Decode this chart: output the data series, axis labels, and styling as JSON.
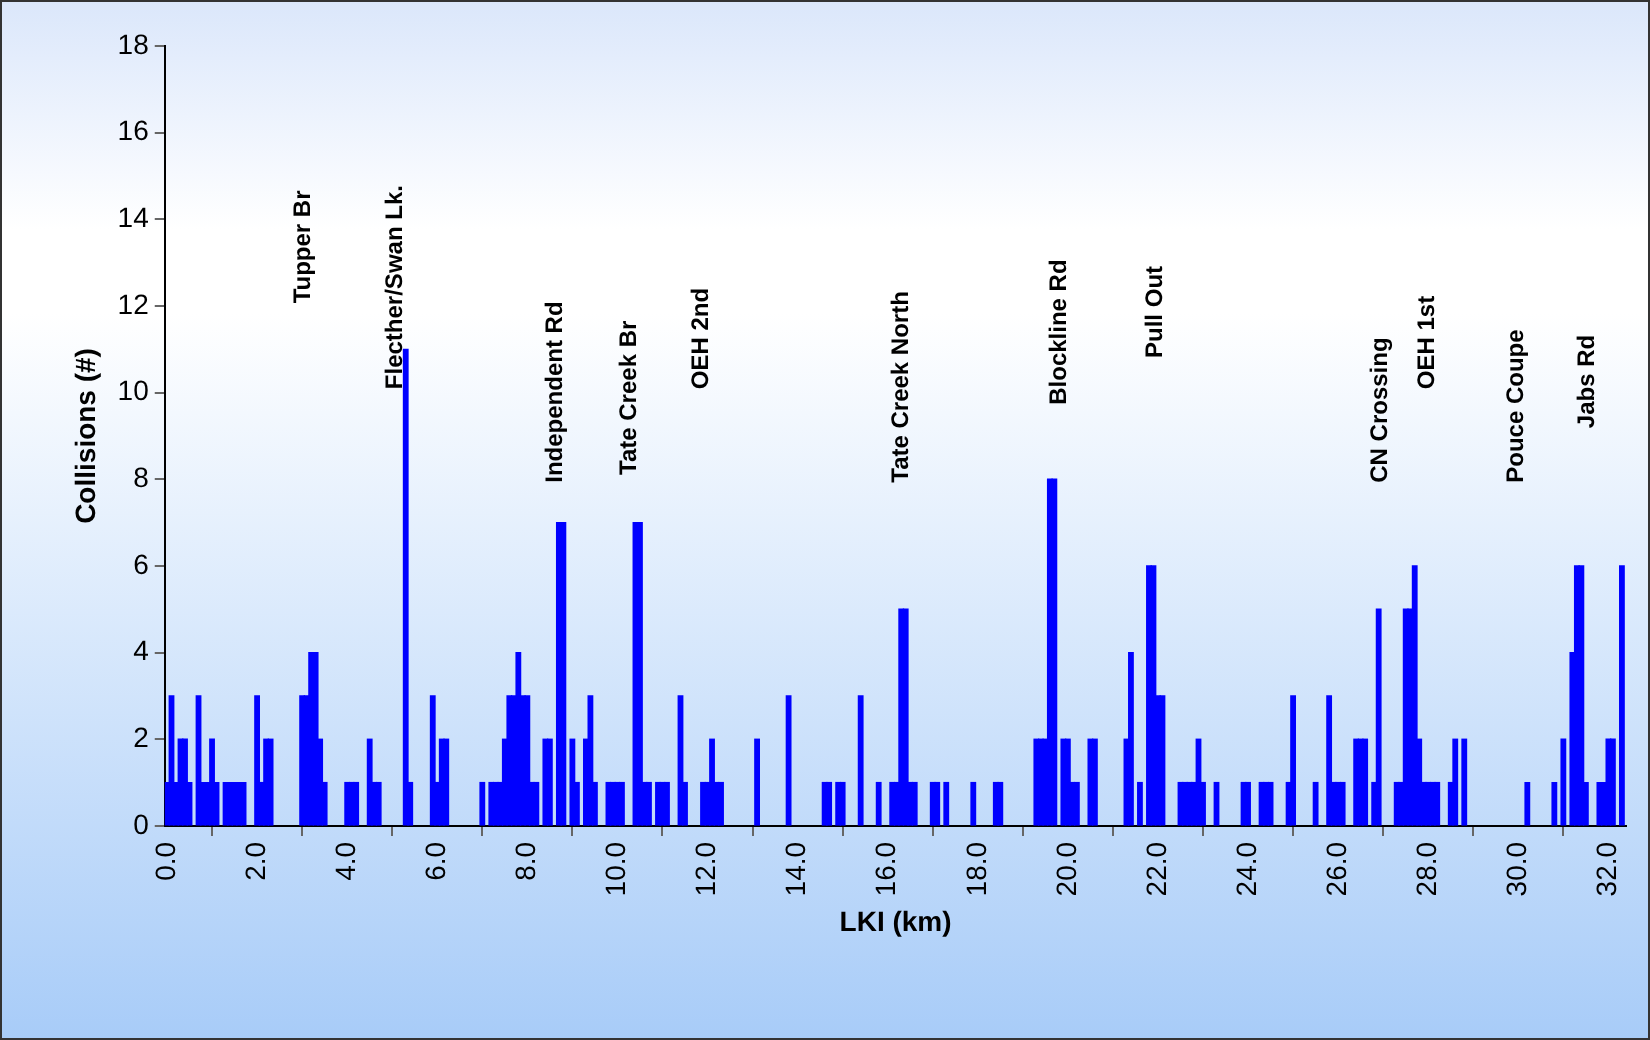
{
  "chart_data": {
    "type": "bar",
    "xlabel": "LKI (km)",
    "ylabel": "Collisions (#)",
    "color": "#0000ff",
    "grid": false,
    "legend": false,
    "x": [
      0.0,
      0.1,
      0.2,
      0.3,
      0.4,
      0.5,
      0.7,
      0.8,
      0.9,
      1.0,
      1.1,
      1.3,
      1.4,
      1.5,
      1.6,
      1.7,
      2.0,
      2.1,
      2.2,
      2.3,
      3.0,
      3.1,
      3.2,
      3.3,
      3.4,
      3.5,
      4.0,
      4.1,
      4.2,
      4.5,
      4.6,
      4.7,
      5.3,
      5.4,
      5.9,
      6.0,
      6.1,
      6.2,
      7.0,
      7.2,
      7.3,
      7.4,
      7.5,
      7.6,
      7.7,
      7.8,
      7.9,
      8.0,
      8.1,
      8.2,
      8.4,
      8.5,
      8.7,
      8.8,
      9.0,
      9.1,
      9.3,
      9.4,
      9.5,
      9.8,
      9.9,
      10.0,
      10.1,
      10.4,
      10.5,
      10.6,
      10.7,
      10.9,
      11.0,
      11.1,
      11.4,
      11.5,
      11.9,
      12.0,
      12.1,
      12.2,
      12.3,
      13.1,
      13.8,
      14.6,
      14.7,
      14.9,
      15.0,
      15.4,
      15.8,
      16.1,
      16.2,
      16.3,
      16.4,
      16.5,
      16.6,
      17.0,
      17.1,
      17.3,
      17.9,
      18.4,
      18.5,
      19.3,
      19.4,
      19.5,
      19.6,
      19.7,
      19.9,
      20.0,
      20.1,
      20.2,
      20.5,
      20.6,
      21.3,
      21.4,
      21.6,
      21.8,
      21.9,
      22.0,
      22.1,
      22.5,
      22.6,
      22.7,
      22.8,
      22.9,
      23.0,
      23.3,
      23.9,
      24.0,
      24.3,
      24.4,
      24.5,
      24.9,
      25.0,
      25.5,
      25.8,
      25.9,
      26.0,
      26.1,
      26.4,
      26.5,
      26.6,
      26.8,
      26.9,
      27.3,
      27.4,
      27.5,
      27.6,
      27.7,
      27.8,
      27.9,
      28.0,
      28.1,
      28.2,
      28.5,
      28.6,
      28.8,
      30.2,
      30.8,
      31.0,
      31.2,
      31.3,
      31.4,
      31.5,
      31.8,
      31.9,
      32.0,
      32.1,
      32.3
    ],
    "values": [
      1,
      3,
      1,
      2,
      2,
      1,
      3,
      1,
      1,
      2,
      1,
      1,
      1,
      1,
      1,
      1,
      3,
      1,
      2,
      2,
      3,
      3,
      4,
      4,
      2,
      1,
      1,
      1,
      1,
      2,
      1,
      1,
      11,
      1,
      3,
      1,
      2,
      2,
      1,
      1,
      1,
      1,
      2,
      3,
      3,
      4,
      3,
      3,
      1,
      1,
      2,
      2,
      7,
      7,
      2,
      1,
      2,
      3,
      1,
      1,
      1,
      1,
      1,
      7,
      7,
      1,
      1,
      1,
      1,
      1,
      3,
      1,
      1,
      1,
      2,
      1,
      1,
      2,
      3,
      1,
      1,
      1,
      1,
      3,
      1,
      1,
      1,
      5,
      5,
      1,
      1,
      1,
      1,
      1,
      1,
      1,
      1,
      2,
      2,
      2,
      8,
      8,
      2,
      2,
      1,
      1,
      2,
      2,
      2,
      4,
      1,
      6,
      6,
      3,
      3,
      1,
      1,
      1,
      1,
      2,
      1,
      1,
      1,
      1,
      1,
      1,
      1,
      1,
      3,
      1,
      3,
      1,
      1,
      1,
      2,
      2,
      2,
      1,
      5,
      1,
      1,
      5,
      5,
      6,
      2,
      1,
      1,
      1,
      1,
      1,
      2,
      2,
      1,
      1,
      2,
      4,
      6,
      6,
      1,
      1,
      1,
      2,
      2,
      6
    ],
    "xlim": [
      -0.05,
      32.4
    ],
    "xticks": [
      {
        "value": 0,
        "label": "0.0"
      },
      {
        "value": 2,
        "label": "2.0"
      },
      {
        "value": 4,
        "label": "4.0"
      },
      {
        "value": 6,
        "label": "6.0"
      },
      {
        "value": 8,
        "label": "8.0"
      },
      {
        "value": 10,
        "label": "10.0"
      },
      {
        "value": 12,
        "label": "12.0"
      },
      {
        "value": 14,
        "label": "14.0"
      },
      {
        "value": 16,
        "label": "16.0"
      },
      {
        "value": 18,
        "label": "18.0"
      },
      {
        "value": 20,
        "label": "20.0"
      },
      {
        "value": 22,
        "label": "22.0"
      },
      {
        "value": 24,
        "label": "24.0"
      },
      {
        "value": 26,
        "label": "26.0"
      },
      {
        "value": 28,
        "label": "28.0"
      },
      {
        "value": 30,
        "label": "30.0"
      },
      {
        "value": 32,
        "label": "32.0"
      }
    ],
    "ylim": [
      0,
      18
    ],
    "yticks": [
      0,
      2,
      4,
      6,
      8,
      10,
      12,
      14,
      16,
      18
    ],
    "annotations": [
      "Tupper Br",
      "Flecther/Swan Lk.",
      "Independent Rd",
      "Tate Creek Br",
      "OEH 2nd",
      "Tate Creek North",
      "Blockline Rd",
      "Pull Out",
      "CN Crossing",
      "OEH 1st",
      "Pouce Coupe",
      "Jabs Rd"
    ]
  }
}
